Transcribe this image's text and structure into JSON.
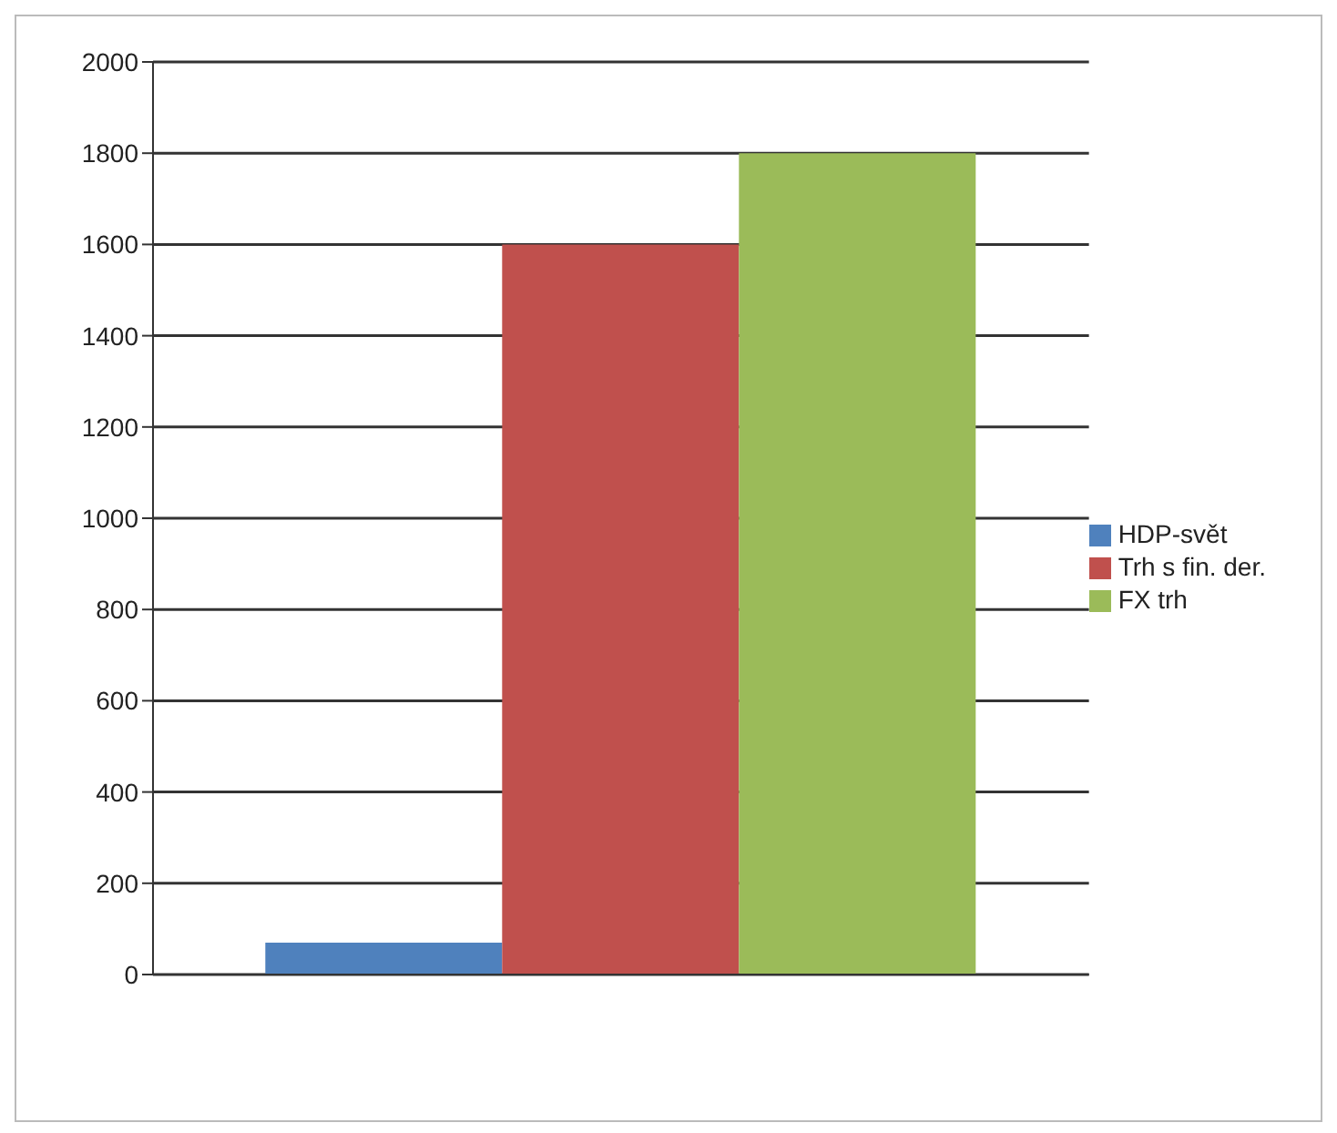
{
  "chart_data": {
    "type": "bar",
    "categories": [
      null
    ],
    "series": [
      {
        "name": "HDP-svět",
        "color": "#4f81bd",
        "values": [
          70
        ]
      },
      {
        "name": "Trh s fin. der.",
        "color": "#c0504d",
        "values": [
          1600
        ]
      },
      {
        "name": "FX trh",
        "color": "#9bbb59",
        "values": [
          1800
        ]
      }
    ],
    "ylim": [
      0,
      2000
    ],
    "yticks": [
      0,
      200,
      400,
      600,
      800,
      1000,
      1200,
      1400,
      1600,
      1800,
      2000
    ],
    "grid": "y",
    "legend": "right"
  }
}
